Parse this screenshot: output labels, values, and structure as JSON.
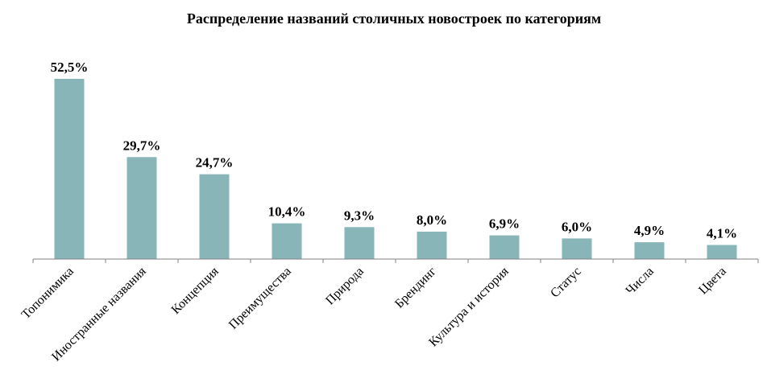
{
  "chart_data": {
    "type": "bar",
    "title": "Распределение названий столичных новостроек по категориям",
    "categories": [
      "Топонимика",
      "Иностранные названия",
      "Концепция",
      "Преимущества",
      "Природа",
      "Брендинг",
      "Культура и история",
      "Статус",
      "Числа",
      "Цвета"
    ],
    "values": [
      52.5,
      29.7,
      24.7,
      10.4,
      9.3,
      8.0,
      6.9,
      6.0,
      4.9,
      4.1
    ],
    "value_labels": [
      "52,5%",
      "29,7%",
      "24,7%",
      "10,4%",
      "9,3%",
      "8,0%",
      "6,9%",
      "6,0%",
      "4,9%",
      "4,1%"
    ],
    "xlabel": "",
    "ylabel": "",
    "ylim": [
      0,
      55
    ],
    "grid": false,
    "legend": "none",
    "bar_color": "#87b5b8",
    "axis_color": "#808080"
  }
}
